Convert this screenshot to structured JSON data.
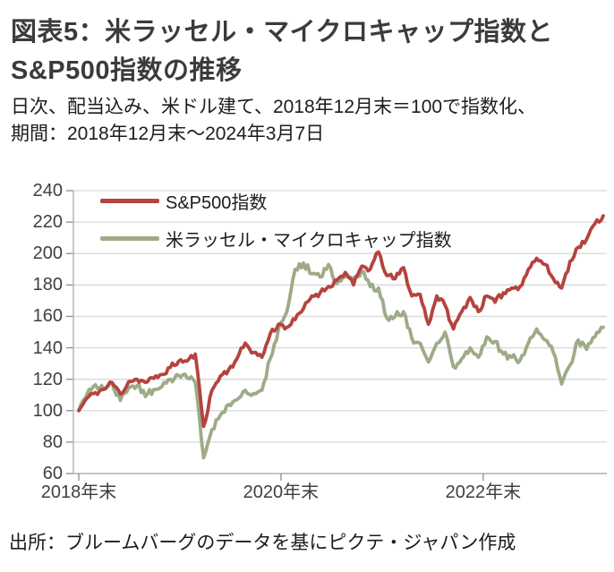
{
  "header": {
    "title_line1": "図表5：米ラッセル・マイクロキャップ指数と",
    "title_line2": "S&P500指数の推移",
    "subtitle_line1": "日次、配当込み、米ドル建て、2018年12月末＝100で指数化、",
    "subtitle_line2": "期間：2018年12月末～2024年3月7日"
  },
  "source": {
    "text": "出所：ブルームバーグのデータを基にピクテ・ジャパン作成"
  },
  "chart_data": {
    "type": "line",
    "title": "米ラッセル・マイクロキャップ指数とS&P500指数の推移",
    "ylabel": "",
    "xlabel": "",
    "ylim": [
      60,
      240
    ],
    "y_step": 20,
    "y_ticks": [
      240,
      220,
      200,
      180,
      160,
      140,
      120,
      100,
      80,
      60
    ],
    "months_total": 62.25,
    "x_ticks": [
      {
        "label": "2018年末",
        "month": 0
      },
      {
        "label": "2020年末",
        "month": 24
      },
      {
        "label": "2022年末",
        "month": 48
      }
    ],
    "grid": "horizontal",
    "legend_position": "top-left-inside",
    "series": [
      {
        "name": "S&P500指数",
        "color": "#b5433e",
        "values": [
          100,
          108,
          111.5,
          113.5,
          118,
          110.5,
          118.5,
          120,
          118,
          120.5,
          123,
          127.5,
          131.5,
          131.5,
          136,
          90,
          113,
          122,
          126,
          133,
          143,
          137,
          134,
          149,
          155,
          153,
          158,
          165,
          173,
          175,
          179,
          183,
          188,
          180,
          192,
          190,
          201,
          186,
          184,
          191,
          173,
          174,
          155,
          173,
          167,
          152,
          163,
          172,
          163,
          173,
          169,
          175,
          178,
          179,
          190,
          197,
          193,
          184,
          178,
          195,
          204,
          209,
          219,
          224
        ]
      },
      {
        "name": "米ラッセル・マイクロキャップ指数",
        "color": "#9dab87",
        "values": [
          100,
          110.5,
          116.5,
          113.5,
          117.5,
          106.5,
          114.5,
          116,
          109,
          113.5,
          115.5,
          120,
          122.5,
          121,
          118,
          70,
          88,
          97,
          104,
          107,
          113,
          111,
          113,
          133,
          152,
          163,
          190,
          194,
          187,
          185,
          193,
          181,
          185,
          183,
          189,
          179,
          178,
          159,
          160,
          163,
          146,
          143,
          131,
          143,
          150,
          128,
          133,
          140,
          134,
          147,
          144,
          136,
          134,
          132,
          143,
          152,
          145,
          137,
          117,
          129,
          145,
          139,
          147,
          153
        ]
      }
    ],
    "jitter": {
      "seed": 11,
      "subdivisions": 4,
      "amplitude": [
        1.9,
        2.3
      ]
    }
  }
}
